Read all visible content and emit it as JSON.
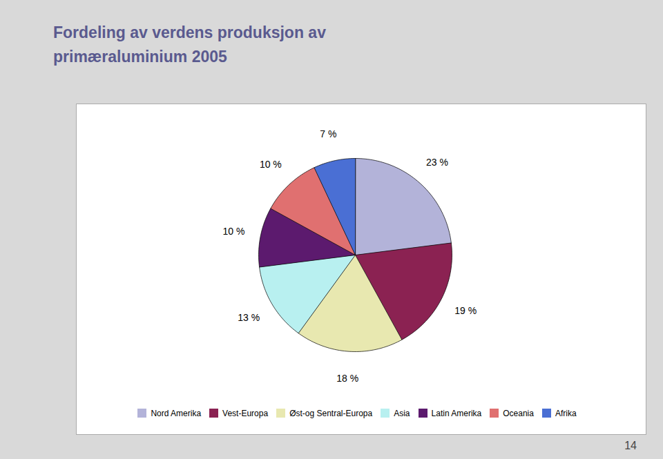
{
  "chart_data": {
    "type": "pie",
    "title": "Fordeling av verdens produksjon av\nprimæraluminium 2005",
    "categories": [
      "Nord Amerika",
      "Vest-Europa",
      "Øst-og Sentral-Europa",
      "Asia",
      "Latin Amerika",
      "Oceania",
      "Afrika"
    ],
    "values": [
      23,
      19,
      18,
      13,
      10,
      10,
      7
    ],
    "value_labels": [
      "23 %",
      "19 %",
      "18 %",
      "13 %",
      "10 %",
      "10 %",
      "7 %"
    ],
    "colors": [
      "#b3b3d9",
      "#8b2252",
      "#e8e8b0",
      "#b8f0f0",
      "#5c1a6e",
      "#e07070",
      "#4a6fd4"
    ],
    "data_labels": true,
    "legend": "bottom",
    "annotations": [
      "14"
    ]
  }
}
